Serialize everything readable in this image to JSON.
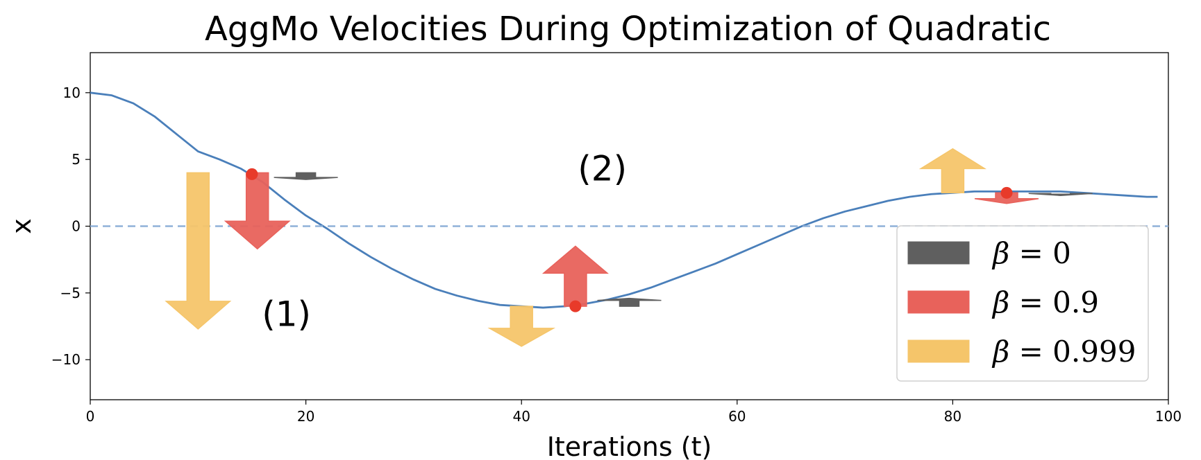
{
  "chart_data": {
    "type": "line",
    "title": "AggMo Velocities During Optimization of Quadratic",
    "xlabel": "Iterations (t)",
    "ylabel": "x",
    "xlim": [
      0,
      100
    ],
    "ylim": [
      -13,
      13
    ],
    "xticks": [
      0,
      20,
      40,
      60,
      80,
      100
    ],
    "yticks": [
      10,
      5,
      0,
      -5,
      -10
    ],
    "ytick_labels": [
      "10",
      "5",
      "0",
      "−5",
      "−10"
    ],
    "grid": false,
    "colors": {
      "curve": "#4a7fba",
      "zero_line": "#8fb1d8",
      "beta0": "#5f5f5f",
      "beta09": "#e8625b",
      "beta0999": "#f5c56a",
      "point": "#e83a2a"
    },
    "series": [
      {
        "style": "solid",
        "x": [
          0,
          2,
          4,
          6,
          8,
          10,
          12,
          14,
          16,
          18,
          20,
          22,
          24,
          26,
          28,
          30,
          32,
          34,
          36,
          38,
          40,
          42,
          44,
          46,
          48,
          50,
          52,
          54,
          56,
          58,
          60,
          62,
          64,
          66,
          68,
          70,
          72,
          74,
          76,
          78,
          80,
          82,
          84,
          86,
          88,
          90,
          92,
          94,
          96,
          98,
          99
        ],
        "y": [
          10,
          9.8,
          9.2,
          8.2,
          6.9,
          5.6,
          5.0,
          4.3,
          3.3,
          2.0,
          0.8,
          -0.2,
          -1.3,
          -2.3,
          -3.2,
          -4.0,
          -4.7,
          -5.2,
          -5.6,
          -5.9,
          -6.0,
          -6.1,
          -6.0,
          -5.8,
          -5.5,
          -5.1,
          -4.6,
          -4.0,
          -3.4,
          -2.8,
          -2.1,
          -1.4,
          -0.7,
          0.0,
          0.6,
          1.1,
          1.5,
          1.9,
          2.2,
          2.4,
          2.5,
          2.6,
          2.6,
          2.6,
          2.6,
          2.6,
          2.5,
          2.4,
          2.3,
          2.2,
          2.2
        ]
      },
      {
        "style": "dashed",
        "x": [
          0,
          100
        ],
        "y": [
          0,
          0
        ]
      }
    ],
    "points": [
      {
        "x": 15,
        "y": 3.9
      },
      {
        "x": 45,
        "y": -6.0
      },
      {
        "x": 85,
        "y": 2.5
      }
    ],
    "velocity_arrows": [
      {
        "group": "beta0999",
        "x": 10,
        "y_start": 4.0,
        "y_end": -7.7
      },
      {
        "group": "beta09",
        "x": 15.5,
        "y_start": 4.0,
        "y_end": -1.7
      },
      {
        "group": "beta0",
        "x": 20,
        "y_start": 4.0,
        "y_end": 3.5
      },
      {
        "group": "beta0999",
        "x": 40,
        "y_start": -6.0,
        "y_end": -9.0
      },
      {
        "group": "beta09",
        "x": 45,
        "y_start": -6.0,
        "y_end": -1.5
      },
      {
        "group": "beta0",
        "x": 50,
        "y_start": -6.0,
        "y_end": -5.4
      },
      {
        "group": "beta0999",
        "x": 80,
        "y_start": 2.5,
        "y_end": 5.8
      },
      {
        "group": "beta09",
        "x": 85,
        "y_start": 2.5,
        "y_end": 1.7
      },
      {
        "group": "beta0",
        "x": 90,
        "y_start": 2.4,
        "y_end": 2.3
      }
    ],
    "annotations": [
      {
        "text": "(1)",
        "x": 18.2,
        "y": -6.6
      },
      {
        "text": "(2)",
        "x": 47.5,
        "y": 4.3
      }
    ],
    "legend": {
      "placement": "lower-right",
      "entries": [
        {
          "group": "beta0",
          "symbol": "β",
          "rest": " = 0"
        },
        {
          "group": "beta09",
          "symbol": "β",
          "rest": " = 0.9"
        },
        {
          "group": "beta0999",
          "symbol": "β",
          "rest": " = 0.999"
        }
      ]
    }
  }
}
